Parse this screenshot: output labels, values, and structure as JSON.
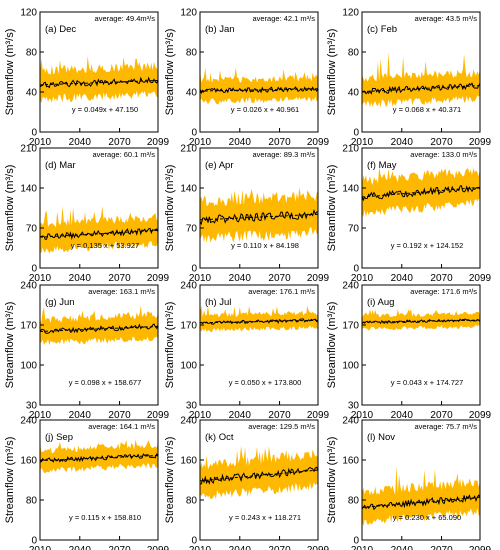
{
  "figure": {
    "ylabel": "Streamflow (m³/s)"
  },
  "chart_data": [
    {
      "type": "area",
      "panel_label": "(a) Dec",
      "average": "average: 49.4m³/s",
      "equation": "y = 0.049x + 47.150",
      "xticks": [
        "2010",
        "2040",
        "2070",
        "2099"
      ],
      "yticks": [
        "0",
        "40",
        "80",
        "120"
      ],
      "ylim": [
        0,
        120
      ],
      "xlim": [
        2010,
        2099
      ],
      "trend": {
        "slope": 0.049,
        "intercept": 47.15
      },
      "band_low": 35,
      "band_high": 70,
      "peak_high": 80
    },
    {
      "type": "area",
      "panel_label": "(b) Jan",
      "average": "average: 42.1 m³/s",
      "equation": "y = 0.026 x + 40.961",
      "xticks": [
        "2010",
        "2040",
        "2070",
        "2099"
      ],
      "yticks": [
        "0",
        "40",
        "80",
        "120"
      ],
      "ylim": [
        0,
        120
      ],
      "xlim": [
        2010,
        2099
      ],
      "trend": {
        "slope": 0.026,
        "intercept": 40.961
      },
      "band_low": 32,
      "band_high": 58,
      "peak_high": 65
    },
    {
      "type": "area",
      "panel_label": "(c) Feb",
      "average": "average: 43.5 m³/s",
      "equation": "y = 0.068 x + 40.371",
      "xticks": [
        "2010",
        "2040",
        "2070",
        "2099"
      ],
      "yticks": [
        "0",
        "40",
        "80",
        "120"
      ],
      "ylim": [
        0,
        120
      ],
      "xlim": [
        2010,
        2099
      ],
      "trend": {
        "slope": 0.068,
        "intercept": 40.371
      },
      "band_low": 30,
      "band_high": 62,
      "peak_high": 80
    },
    {
      "type": "area",
      "panel_label": "(d) Mar",
      "average": "average: 60.1 m³/s",
      "equation": "y = 0.135 x + 53.927",
      "xticks": [
        "2010",
        "2040",
        "2070",
        "2099"
      ],
      "yticks": [
        "0",
        "70",
        "140",
        "210"
      ],
      "ylim": [
        0,
        210
      ],
      "xlim": [
        2010,
        2099
      ],
      "trend": {
        "slope": 0.135,
        "intercept": 53.927
      },
      "band_low": 38,
      "band_high": 95,
      "peak_high": 110
    },
    {
      "type": "area",
      "panel_label": "(e) Apr",
      "average": "average: 89.3 m³/s",
      "equation": "y = 0.110 x + 84.198",
      "xticks": [
        "2010",
        "2040",
        "2070",
        "2099"
      ],
      "yticks": [
        "0",
        "70",
        "140",
        "210"
      ],
      "ylim": [
        0,
        210
      ],
      "xlim": [
        2010,
        2099
      ],
      "trend": {
        "slope": 0.11,
        "intercept": 84.198
      },
      "band_low": 50,
      "band_high": 130,
      "peak_high": 150
    },
    {
      "type": "area",
      "panel_label": "(f) May",
      "average": "average: 133.0 m³/s",
      "equation": "y = 0.192 x + 124.152",
      "xticks": [
        "2010",
        "2040",
        "2070",
        "2099"
      ],
      "yticks": [
        "0",
        "70",
        "140",
        "210"
      ],
      "ylim": [
        0,
        210
      ],
      "xlim": [
        2010,
        2099
      ],
      "trend": {
        "slope": 0.192,
        "intercept": 124.152
      },
      "band_low": 95,
      "band_high": 165,
      "peak_high": 185
    },
    {
      "type": "area",
      "panel_label": "(g) Jun",
      "average": "average: 163.1 m³/s",
      "equation": "y = 0.098 x + 158.677",
      "xticks": [
        "2010",
        "2040",
        "2070",
        "2099"
      ],
      "yticks": [
        "30",
        "100",
        "170",
        "240"
      ],
      "ylim": [
        30,
        240
      ],
      "xlim": [
        2010,
        2099
      ],
      "trend": {
        "slope": 0.098,
        "intercept": 158.677
      },
      "band_low": 138,
      "band_high": 188,
      "peak_high": 205
    },
    {
      "type": "area",
      "panel_label": "(h) Jul",
      "average": "average: 176.1 m³/s",
      "equation": "y = 0.050 x + 173.800",
      "xticks": [
        "2010",
        "2040",
        "2070",
        "2099"
      ],
      "yticks": [
        "30",
        "100",
        "170",
        "240"
      ],
      "ylim": [
        30,
        240
      ],
      "xlim": [
        2010,
        2099
      ],
      "trend": {
        "slope": 0.05,
        "intercept": 173.8
      },
      "band_low": 160,
      "band_high": 192,
      "peak_high": 205
    },
    {
      "type": "area",
      "panel_label": "(i) Aug",
      "average": "average: 171.6 m³/s",
      "equation": "y = 0.043 x + 174.727",
      "xticks": [
        "2010",
        "2040",
        "2070",
        "2099"
      ],
      "yticks": [
        "30",
        "100",
        "170",
        "240"
      ],
      "ylim": [
        30,
        240
      ],
      "xlim": [
        2010,
        2099
      ],
      "trend": {
        "slope": 0.043,
        "intercept": 174.727
      },
      "band_low": 160,
      "band_high": 188,
      "peak_high": 198
    },
    {
      "type": "area",
      "panel_label": "(j) Sep",
      "average": "average: 164.1 m³/s",
      "equation": "y = 0.115 x + 158.810",
      "xticks": [
        "2010",
        "2040",
        "2070",
        "2099"
      ],
      "yticks": [
        "0",
        "80",
        "160",
        "240"
      ],
      "ylim": [
        0,
        240
      ],
      "xlim": [
        2010,
        2099
      ],
      "trend": {
        "slope": 0.115,
        "intercept": 158.81
      },
      "band_low": 140,
      "band_high": 190,
      "peak_high": 205
    },
    {
      "type": "area",
      "panel_label": "(k) Oct",
      "average": "average: 129.5 m³/s",
      "equation": "y = 0.243 x + 118.271",
      "xticks": [
        "2010",
        "2040",
        "2070",
        "2099"
      ],
      "yticks": [
        "0",
        "80",
        "160",
        "240"
      ],
      "ylim": [
        0,
        240
      ],
      "xlim": [
        2010,
        2099
      ],
      "trend": {
        "slope": 0.243,
        "intercept": 118.271
      },
      "band_low": 88,
      "band_high": 165,
      "peak_high": 190
    },
    {
      "type": "area",
      "panel_label": "(l) Nov",
      "average": "average: 75.7 m³/s",
      "equation": "y = 0.230 x + 65.090",
      "xticks": [
        "2010",
        "2040",
        "2070",
        "2099"
      ],
      "yticks": [
        "0",
        "80",
        "160",
        "240"
      ],
      "ylim": [
        0,
        240
      ],
      "xlim": [
        2010,
        2099
      ],
      "trend": {
        "slope": 0.23,
        "intercept": 65.09
      },
      "band_low": 45,
      "band_high": 118,
      "peak_high": 150
    }
  ],
  "colors": {
    "band": "#ffb800",
    "line": "#000000",
    "axis": "#000000"
  }
}
